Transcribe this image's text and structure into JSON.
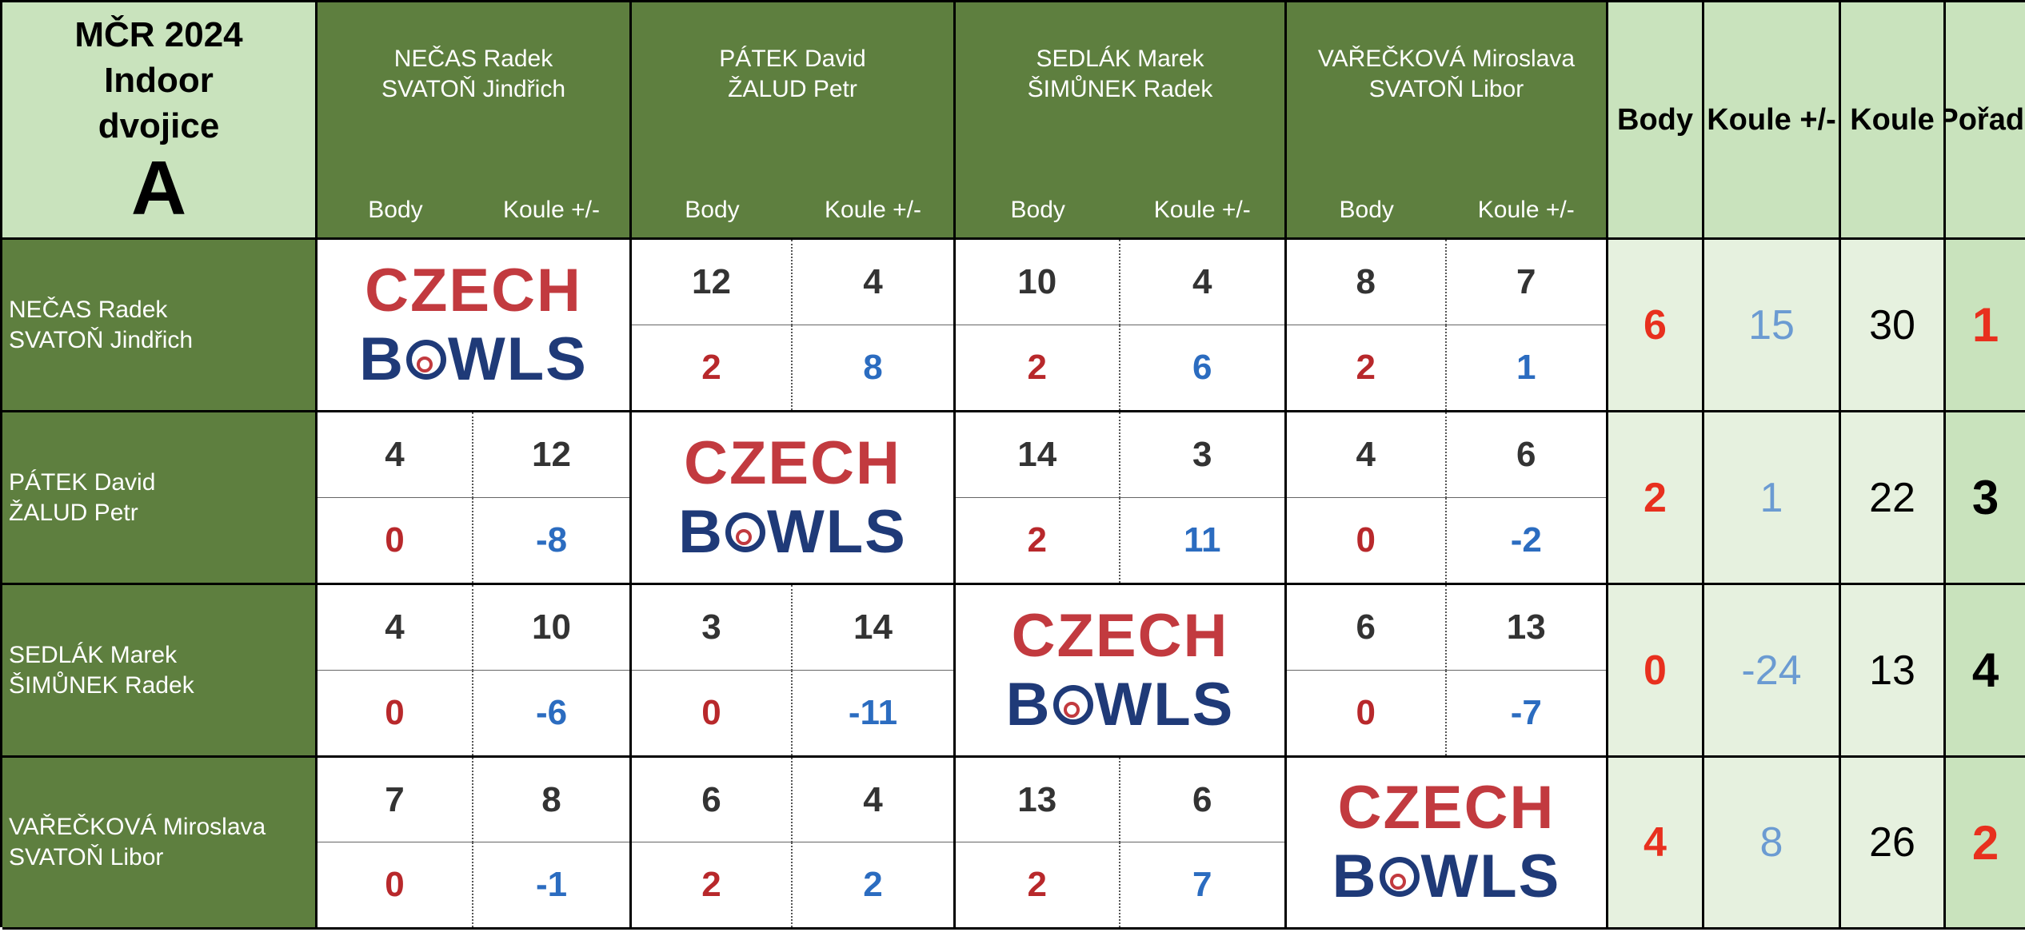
{
  "title": {
    "line1": "MČR 2024",
    "line2": "Indoor",
    "line3": "dvojice",
    "group": "A"
  },
  "teams": [
    {
      "line1": "NEČAS Radek",
      "line2": "SVATOŇ Jindřich"
    },
    {
      "line1": "PÁTEK David",
      "line2": "ŽALUD Petr"
    },
    {
      "line1": "SEDLÁK Marek",
      "line2": "ŠIMŮNEK Radek"
    },
    {
      "line1": "VAŘEČKOVÁ Miroslava",
      "line2": "SVATOŇ Libor"
    }
  ],
  "subheaders": {
    "body": "Body",
    "koule": "Koule +/-"
  },
  "summary_headers": {
    "body": "Body",
    "koule_diff": "Koule +/-",
    "koule": "Koule",
    "poradi": "Pořadí"
  },
  "logo": {
    "line1": "CZECH",
    "line2_pre": "B",
    "line2_post": "WLS"
  },
  "matches": [
    [
      null,
      {
        "score_a": "12",
        "score_b": "4",
        "points": "2",
        "diff": "8"
      },
      {
        "score_a": "10",
        "score_b": "4",
        "points": "2",
        "diff": "6"
      },
      {
        "score_a": "8",
        "score_b": "7",
        "points": "2",
        "diff": "1"
      }
    ],
    [
      {
        "score_a": "4",
        "score_b": "12",
        "points": "0",
        "diff": "-8"
      },
      null,
      {
        "score_a": "14",
        "score_b": "3",
        "points": "2",
        "diff": "11"
      },
      {
        "score_a": "4",
        "score_b": "6",
        "points": "0",
        "diff": "-2"
      }
    ],
    [
      {
        "score_a": "4",
        "score_b": "10",
        "points": "0",
        "diff": "-6"
      },
      {
        "score_a": "3",
        "score_b": "14",
        "points": "0",
        "diff": "-11"
      },
      null,
      {
        "score_a": "6",
        "score_b": "13",
        "points": "0",
        "diff": "-7"
      }
    ],
    [
      {
        "score_a": "7",
        "score_b": "8",
        "points": "0",
        "diff": "-1"
      },
      {
        "score_a": "6",
        "score_b": "4",
        "points": "2",
        "diff": "2"
      },
      {
        "score_a": "13",
        "score_b": "6",
        "points": "2",
        "diff": "7"
      },
      null
    ]
  ],
  "summary": [
    {
      "body": "6",
      "koule_diff": "15",
      "koule": "30",
      "poradi": "1"
    },
    {
      "body": "2",
      "koule_diff": "1",
      "koule": "22",
      "poradi": "3"
    },
    {
      "body": "0",
      "koule_diff": "-24",
      "koule": "13",
      "poradi": "4"
    },
    {
      "body": "4",
      "koule_diff": "8",
      "koule": "26",
      "poradi": "2"
    }
  ],
  "colors": {
    "header_green": "#5e7f3f",
    "light_green": "#c9e3bd",
    "points_red": "#b8282b",
    "diff_blue": "#2b6cc0",
    "rank_red": "#e8301e"
  }
}
